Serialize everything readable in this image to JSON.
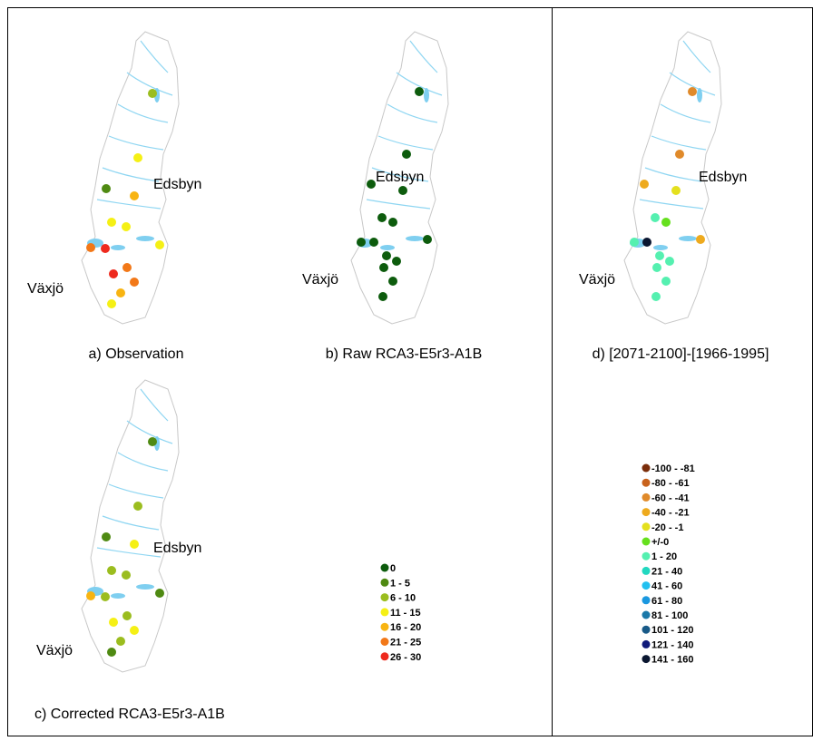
{
  "maps": [
    {
      "caption": "a) Observation",
      "cities": [
        "Edsbyn",
        "Växjö"
      ],
      "stations": [
        "6 - 10",
        "11 - 15",
        "1 - 5",
        "16 - 20",
        "11 - 15",
        "11 - 15",
        "11 - 15",
        "21 - 25",
        "26 - 30",
        "21 - 25",
        "26 - 30",
        "21 - 25",
        "16 - 20",
        "11 - 15"
      ]
    },
    {
      "caption": "b) Raw RCA3-E5r3-A1B",
      "cities": [
        "Edsbyn",
        "Växjö"
      ],
      "stations": [
        "0",
        "0",
        "0",
        "0",
        "0",
        "0",
        "0",
        "0",
        "0",
        "0",
        "0",
        "0",
        "0",
        "0"
      ]
    },
    {
      "caption": "c) Corrected RCA3-E5r3-A1B",
      "cities": [
        "Edsbyn",
        "Växjö"
      ],
      "stations": [
        "1 - 5",
        "6 - 10",
        "1 - 5",
        "11 - 15",
        "6 - 10",
        "6 - 10",
        "1 - 5",
        "16 - 20",
        "6 - 10",
        "6 - 10",
        "11 - 15",
        "11 - 15",
        "6 - 10",
        "1 - 5"
      ]
    },
    {
      "caption": "d) [2071-2100]-[1966-1995]",
      "cities": [
        "Edsbyn",
        "Växjö"
      ],
      "stations": [
        "-60 - -41",
        "-60 - -41",
        "-40 - -21",
        "-20 - -1",
        "1 - 20",
        "+/-0",
        "-40 - -21",
        "1 - 20",
        "141 - 160",
        "1 - 20",
        "1 - 20",
        "1 - 20",
        "1 - 20",
        "1 - 20"
      ]
    }
  ],
  "legend_level": {
    "labels": [
      "0",
      "1 - 5",
      "6 - 10",
      "11 - 15",
      "16 - 20",
      "21 - 25",
      "26 - 30"
    ],
    "colors": [
      "#0d5c0d",
      "#4f8a12",
      "#9bbd1f",
      "#f5f015",
      "#f8b412",
      "#f27818",
      "#ee2a1e"
    ]
  },
  "legend_change": {
    "labels": [
      "-100 - -81",
      "-80 - -61",
      "-60 - -41",
      "-40 - -21",
      "-20 - -1",
      "+/-0",
      "1 - 20",
      "21 - 40",
      "41 - 60",
      "61 - 80",
      "81 - 100",
      "101 - 120",
      "121 - 140",
      "141 - 160"
    ],
    "colors": [
      "#7a2d0a",
      "#c8621c",
      "#e08a2a",
      "#eeaa1e",
      "#e4e01e",
      "#66e01e",
      "#55f0b0",
      "#22d8c0",
      "#22c0f0",
      "#1a98e0",
      "#1a78a8",
      "#185a88",
      "#101a7a",
      "#0a1630"
    ]
  }
}
